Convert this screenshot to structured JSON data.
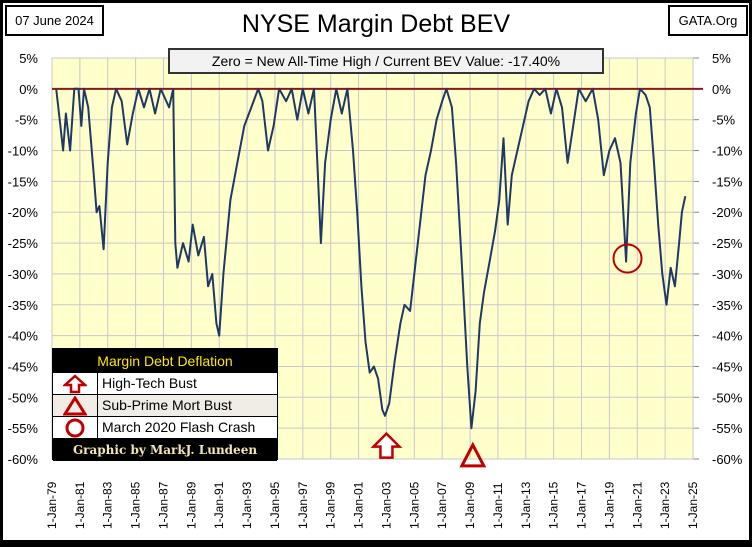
{
  "header": {
    "date": "07 June 2024",
    "title": "NYSE Margin Debt BEV",
    "source": "GATA.Org"
  },
  "summary": "Zero = New All-Time High / Current BEV Value:  -17.40%",
  "legend": {
    "title": "Margin Debt Deflation",
    "items": [
      "High-Tech Bust",
      "Sub-Prime Mort Bust",
      "March 2020 Flash Crash"
    ],
    "credit": "Graphic by MarkJ. Lundeen"
  },
  "colors": {
    "line": "#1f3864",
    "zero": "#8b1a1a",
    "plot_bg": "#ffffcc",
    "marker": "#c00000"
  },
  "chart_data": {
    "type": "line",
    "title": "NYSE Margin Debt BEV",
    "xlim": [
      1979,
      2025
    ],
    "ylim": [
      -60,
      5
    ],
    "grid": true,
    "yticks": [
      5,
      0,
      -5,
      -10,
      -15,
      -20,
      -25,
      -30,
      -35,
      -40,
      -45,
      -50,
      -55,
      -60
    ],
    "ytick_labels": [
      "5%",
      "0%",
      "-5%",
      "-10%",
      "-15%",
      "-20%",
      "-25%",
      "-30%",
      "-35%",
      "-40%",
      "-45%",
      "-50%",
      "-55%",
      "-60%"
    ],
    "xticks": [
      1979,
      1981,
      1983,
      1985,
      1987,
      1989,
      1991,
      1993,
      1995,
      1997,
      1999,
      2001,
      2003,
      2005,
      2007,
      2009,
      2011,
      2013,
      2015,
      2017,
      2019,
      2021,
      2023,
      2025
    ],
    "xtick_labels": [
      "1-Jan-79",
      "1-Jan-81",
      "1-Jan-83",
      "1-Jan-85",
      "1-Jan-87",
      "1-Jan-89",
      "1-Jan-91",
      "1-Jan-93",
      "1-Jan-95",
      "1-Jan-97",
      "1-Jan-99",
      "1-Jan-01",
      "1-Jan-03",
      "1-Jan-05",
      "1-Jan-07",
      "1-Jan-09",
      "1-Jan-11",
      "1-Jan-13",
      "1-Jan-15",
      "1-Jan-17",
      "1-Jan-19",
      "1-Jan-21",
      "1-Jan-23",
      "1-Jan-25"
    ],
    "series": [
      {
        "name": "NYSE Margin Debt BEV",
        "points": [
          [
            1979.3,
            0
          ],
          [
            1979.6,
            -6
          ],
          [
            1979.8,
            -10
          ],
          [
            1980.0,
            -4
          ],
          [
            1980.3,
            -10
          ],
          [
            1980.6,
            0
          ],
          [
            1980.9,
            0
          ],
          [
            1981.1,
            -6
          ],
          [
            1981.3,
            0
          ],
          [
            1981.6,
            -3
          ],
          [
            1982.0,
            -14
          ],
          [
            1982.2,
            -20
          ],
          [
            1982.4,
            -19
          ],
          [
            1982.7,
            -26
          ],
          [
            1983.0,
            -12
          ],
          [
            1983.3,
            -3
          ],
          [
            1983.6,
            0
          ],
          [
            1984.0,
            -2
          ],
          [
            1984.4,
            -9
          ],
          [
            1984.8,
            -4
          ],
          [
            1985.2,
            0
          ],
          [
            1985.6,
            -3
          ],
          [
            1986.0,
            0
          ],
          [
            1986.4,
            -4
          ],
          [
            1986.8,
            0
          ],
          [
            1987.4,
            -3
          ],
          [
            1987.7,
            0
          ],
          [
            1987.85,
            -25
          ],
          [
            1988.0,
            -29
          ],
          [
            1988.4,
            -25
          ],
          [
            1988.8,
            -28
          ],
          [
            1989.1,
            -22
          ],
          [
            1989.5,
            -27
          ],
          [
            1989.9,
            -24
          ],
          [
            1990.2,
            -32
          ],
          [
            1990.5,
            -30
          ],
          [
            1990.8,
            -38
          ],
          [
            1991.0,
            -40
          ],
          [
            1991.3,
            -30
          ],
          [
            1991.8,
            -18
          ],
          [
            1992.3,
            -12
          ],
          [
            1992.8,
            -6
          ],
          [
            1993.3,
            -3
          ],
          [
            1993.8,
            0
          ],
          [
            1994.1,
            -2
          ],
          [
            1994.5,
            -10
          ],
          [
            1994.9,
            -6
          ],
          [
            1995.3,
            0
          ],
          [
            1995.8,
            -2
          ],
          [
            1996.2,
            0
          ],
          [
            1996.6,
            -5
          ],
          [
            1997.0,
            0
          ],
          [
            1997.4,
            -4
          ],
          [
            1997.8,
            0
          ],
          [
            1998.0,
            -10
          ],
          [
            1998.3,
            -25
          ],
          [
            1998.6,
            -12
          ],
          [
            1999.0,
            -5
          ],
          [
            1999.4,
            0
          ],
          [
            1999.8,
            -4
          ],
          [
            2000.2,
            0
          ],
          [
            2000.6,
            -10
          ],
          [
            2000.9,
            -20
          ],
          [
            2001.2,
            -32
          ],
          [
            2001.5,
            -41
          ],
          [
            2001.8,
            -46
          ],
          [
            2002.1,
            -45
          ],
          [
            2002.4,
            -47
          ],
          [
            2002.7,
            -52
          ],
          [
            2002.9,
            -53
          ],
          [
            2003.2,
            -51
          ],
          [
            2003.6,
            -44
          ],
          [
            2004.0,
            -38
          ],
          [
            2004.3,
            -35
          ],
          [
            2004.7,
            -36
          ],
          [
            2005.0,
            -30
          ],
          [
            2005.4,
            -22
          ],
          [
            2005.8,
            -14
          ],
          [
            2006.2,
            -10
          ],
          [
            2006.6,
            -5
          ],
          [
            2007.0,
            -2
          ],
          [
            2007.3,
            0
          ],
          [
            2007.7,
            -3
          ],
          [
            2008.0,
            -12
          ],
          [
            2008.4,
            -28
          ],
          [
            2008.8,
            -45
          ],
          [
            2009.1,
            -55
          ],
          [
            2009.4,
            -49
          ],
          [
            2009.7,
            -38
          ],
          [
            2010.0,
            -33
          ],
          [
            2010.4,
            -28
          ],
          [
            2010.8,
            -23
          ],
          [
            2011.1,
            -18
          ],
          [
            2011.4,
            -8
          ],
          [
            2011.7,
            -22
          ],
          [
            2012.0,
            -14
          ],
          [
            2012.4,
            -10
          ],
          [
            2012.8,
            -6
          ],
          [
            2013.2,
            -2
          ],
          [
            2013.6,
            0
          ],
          [
            2014.0,
            -1
          ],
          [
            2014.4,
            0
          ],
          [
            2014.8,
            -4
          ],
          [
            2015.2,
            0
          ],
          [
            2015.6,
            -3
          ],
          [
            2016.0,
            -12
          ],
          [
            2016.4,
            -6
          ],
          [
            2016.8,
            0
          ],
          [
            2017.3,
            -2
          ],
          [
            2017.8,
            0
          ],
          [
            2018.2,
            -5
          ],
          [
            2018.6,
            -14
          ],
          [
            2019.0,
            -10
          ],
          [
            2019.4,
            -8
          ],
          [
            2019.8,
            -12
          ],
          [
            2020.0,
            -20
          ],
          [
            2020.2,
            -28
          ],
          [
            2020.5,
            -12
          ],
          [
            2020.9,
            -4
          ],
          [
            2021.2,
            0
          ],
          [
            2021.6,
            -1
          ],
          [
            2021.9,
            -3
          ],
          [
            2022.2,
            -12
          ],
          [
            2022.5,
            -22
          ],
          [
            2022.8,
            -30
          ],
          [
            2023.1,
            -35
          ],
          [
            2023.4,
            -29
          ],
          [
            2023.7,
            -32
          ],
          [
            2024.0,
            -25
          ],
          [
            2024.2,
            -20
          ],
          [
            2024.45,
            -17.4
          ]
        ]
      }
    ],
    "annotations": [
      {
        "label": "High-Tech Bust",
        "marker": "arrow-up",
        "x": 2003.0,
        "y": -58
      },
      {
        "label": "Sub-Prime Mort Bust",
        "marker": "triangle",
        "x": 2009.2,
        "y": -59.5
      },
      {
        "label": "March 2020 Flash Crash",
        "marker": "circle",
        "x": 2020.3,
        "y": -27.5
      }
    ]
  }
}
